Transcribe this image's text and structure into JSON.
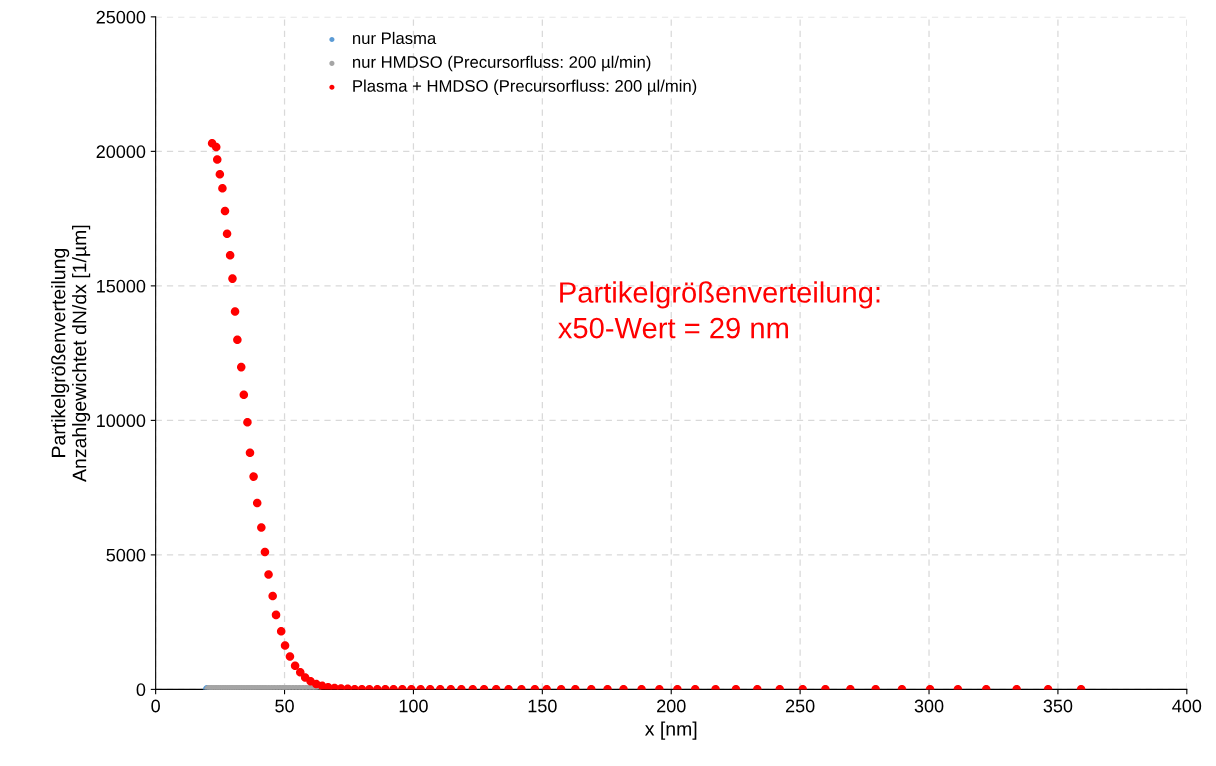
{
  "chart_data": {
    "type": "scatter",
    "xlabel": "x [nm]",
    "ylabel": "Partikelgrößenverteilung\nAnzahlgewichtet dN/dx [1/µm]",
    "xlim": [
      0,
      400
    ],
    "xticks": [
      0,
      50,
      100,
      150,
      200,
      250,
      300,
      350,
      400
    ],
    "ylim": [
      0,
      25000
    ],
    "yticks": [
      0,
      5000,
      10000,
      15000,
      20000,
      25000
    ],
    "grid": true,
    "legend": "top",
    "marker": "circle",
    "annotations": [
      "Partikelgrößenverteilung:\nx50-Wert = 29 nm"
    ],
    "series": [
      {
        "name": "nur Plasma",
        "color": "#5b9bd5",
        "x": [
          20.0
        ],
        "values": [
          0
        ]
      },
      {
        "name": "nur HMDSO (Precursorfluss: 200 µl/min)",
        "color": "#a5a5a5",
        "x": [
          20.6,
          21.5,
          22.4,
          23.3,
          24.2,
          25.1,
          26.0,
          26.9,
          27.8,
          28.7,
          29.6,
          30.5,
          31.4,
          32.3,
          33.3,
          34.3,
          35.3,
          36.3,
          37.3,
          38.3,
          39.3,
          40.4,
          41.5,
          42.6,
          43.7,
          44.8,
          45.9,
          47.1,
          48.3,
          49.5,
          50.7,
          51.9,
          53.2,
          54.5,
          55.8,
          57.1,
          58.4,
          59.8,
          61.2,
          62.6
        ],
        "values": [
          0,
          0,
          0,
          0,
          0,
          0,
          0,
          0,
          0,
          0,
          0,
          0,
          0,
          0,
          0,
          0,
          0,
          0,
          0,
          0,
          0,
          0,
          0,
          0,
          0,
          0,
          0,
          0,
          0,
          0,
          0,
          0,
          0,
          0,
          0,
          0,
          0,
          0,
          0,
          0
        ]
      },
      {
        "name": "Plasma + HMDSO (Precursorfluss: 200 µl/min)",
        "color": "#ff0000",
        "x": [
          21.9,
          23.5,
          23.9,
          24.9,
          25.9,
          26.9,
          27.7,
          28.9,
          29.8,
          30.8,
          31.7,
          33.2,
          34.2,
          35.6,
          36.6,
          38.0,
          39.4,
          41.0,
          42.4,
          43.8,
          45.4,
          46.7,
          48.7,
          50.2,
          52.1,
          54.1,
          56.1,
          58.0,
          60.1,
          62.3,
          64.6,
          66.9,
          69.4,
          71.9,
          74.5,
          77.2,
          80.0,
          82.9,
          86.0,
          89.1,
          92.3,
          95.7,
          99.2,
          102.8,
          106.5,
          110.4,
          114.5,
          118.6,
          123.0,
          127.4,
          132.1,
          136.9,
          141.9,
          147.1,
          151.7,
          157.3,
          162.8,
          169.0,
          175.3,
          181.5,
          188.5,
          195.4,
          202.4,
          209.3,
          217.2,
          225.1,
          233.4,
          242.1,
          251.0,
          259.8,
          269.5,
          279.3,
          289.5,
          300.4,
          311.2,
          322.2,
          334.0,
          346.2,
          359.0
        ],
        "values": [
          20300,
          20160,
          19700,
          19150,
          18630,
          17780,
          16940,
          16140,
          15270,
          14050,
          13000,
          11980,
          10950,
          9930,
          8800,
          7910,
          6930,
          6020,
          5110,
          4270,
          3470,
          2770,
          2160,
          1630,
          1220,
          880,
          640,
          440,
          300,
          200,
          130,
          80,
          50,
          30,
          20,
          0,
          0,
          0,
          0,
          0,
          0,
          0,
          0,
          0,
          0,
          0,
          0,
          0,
          0,
          0,
          0,
          0,
          0,
          0,
          0,
          0,
          0,
          0,
          0,
          0,
          0,
          0,
          0,
          0,
          0,
          0,
          0,
          0,
          0,
          0,
          0,
          0,
          0,
          0,
          0,
          0,
          0,
          0,
          0
        ]
      }
    ]
  }
}
